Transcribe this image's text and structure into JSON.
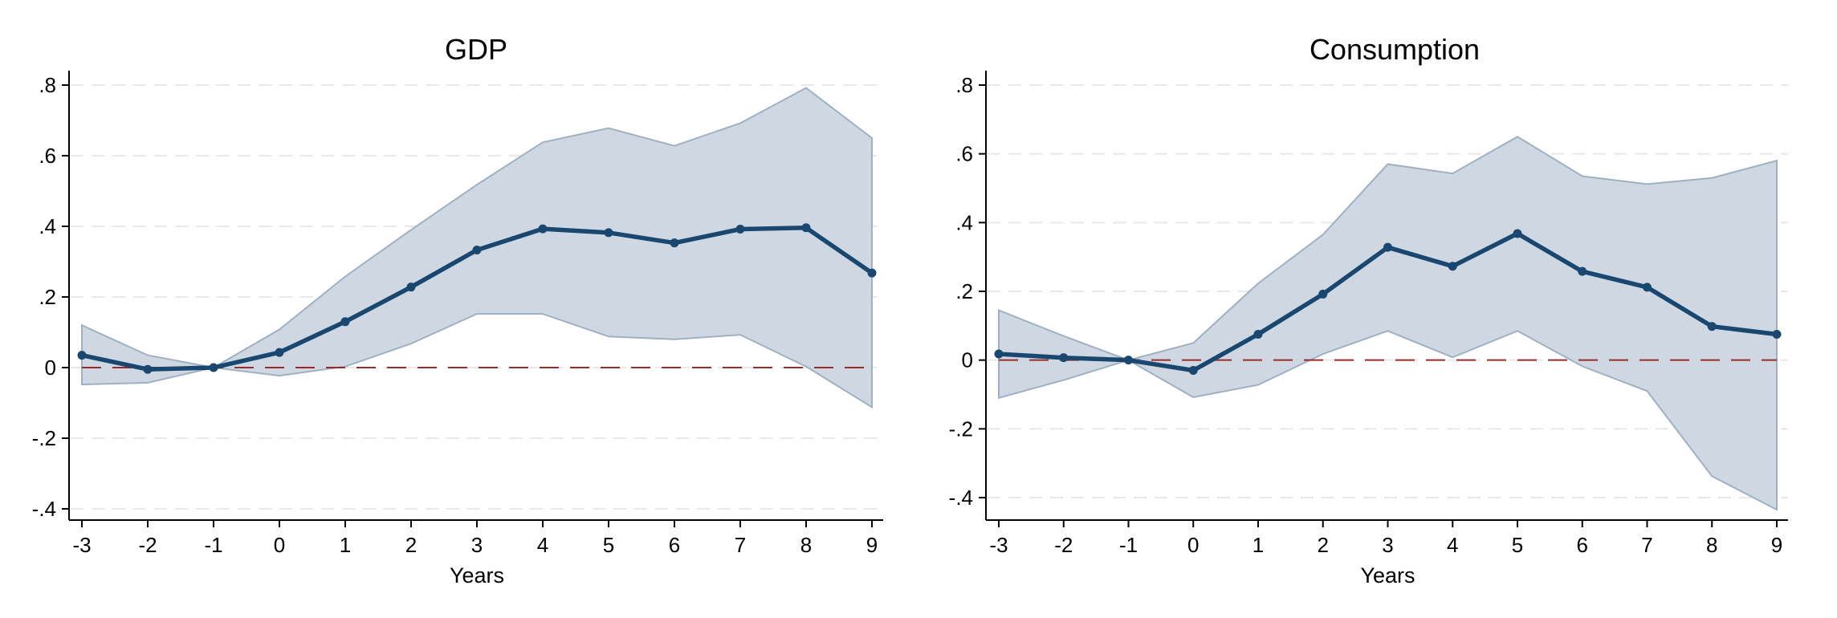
{
  "colors": {
    "line": "#1a476f",
    "band_fill": "#cfd8e2",
    "band_stroke": "#9fb0c2",
    "zero_line": "#9b2b2b",
    "grid": "#e8e8e8",
    "axis": "#000000"
  },
  "chart_data": [
    {
      "type": "line",
      "title": "GDP",
      "xlabel": "Years",
      "ylabel": "",
      "x": [
        -3,
        -2,
        -1,
        0,
        1,
        2,
        3,
        4,
        5,
        6,
        7,
        8,
        9
      ],
      "xlim": [
        -3,
        9
      ],
      "ylim": [
        -0.4,
        0.8
      ],
      "xticks": [
        -3,
        -2,
        -1,
        0,
        1,
        2,
        3,
        4,
        5,
        6,
        7,
        8,
        9
      ],
      "yticks": [
        -0.4,
        -0.2,
        0,
        0.2,
        0.4,
        0.6,
        0.8
      ],
      "ytick_labels": [
        "-.4",
        "-.2",
        "0",
        ".2",
        ".4",
        ".6",
        ".8"
      ],
      "grid": "horizontal dashed",
      "reference_line": 0,
      "series": [
        {
          "values": [
            0.035,
            -0.005,
            0.0,
            0.043,
            0.13,
            0.228,
            0.333,
            0.393,
            0.382,
            0.353,
            0.392,
            0.396,
            0.268
          ],
          "lower": [
            -0.048,
            -0.043,
            0.0,
            -0.023,
            0.003,
            0.068,
            0.152,
            0.152,
            0.088,
            0.08,
            0.093,
            0.003,
            -0.112
          ],
          "upper": [
            0.12,
            0.035,
            0.0,
            0.108,
            0.258,
            0.39,
            0.518,
            0.638,
            0.678,
            0.628,
            0.692,
            0.792,
            0.65
          ]
        }
      ]
    },
    {
      "type": "line",
      "title": "Consumption",
      "xlabel": "Years",
      "ylabel": "",
      "x": [
        -3,
        -2,
        -1,
        0,
        1,
        2,
        3,
        4,
        5,
        6,
        7,
        8,
        9
      ],
      "xlim": [
        -3,
        9
      ],
      "ylim": [
        -0.4,
        0.8
      ],
      "xticks": [
        -3,
        -2,
        -1,
        0,
        1,
        2,
        3,
        4,
        5,
        6,
        7,
        8,
        9
      ],
      "yticks": [
        -0.4,
        -0.2,
        0,
        0.2,
        0.4,
        0.6,
        0.8
      ],
      "ytick_labels": [
        "-.4",
        "-.2",
        "0",
        ".2",
        ".4",
        ".6",
        ".8"
      ],
      "grid": "horizontal dashed",
      "reference_line": 0,
      "series": [
        {
          "values": [
            0.018,
            0.007,
            0.0,
            -0.03,
            0.075,
            0.192,
            0.328,
            0.273,
            0.368,
            0.258,
            0.212,
            0.098,
            0.075
          ],
          "lower": [
            -0.11,
            -0.058,
            0.0,
            -0.108,
            -0.072,
            0.018,
            0.085,
            0.008,
            0.085,
            -0.018,
            -0.09,
            -0.338,
            -0.435
          ],
          "upper": [
            0.145,
            0.07,
            0.0,
            0.05,
            0.223,
            0.365,
            0.57,
            0.543,
            0.65,
            0.535,
            0.512,
            0.53,
            0.58
          ]
        }
      ]
    }
  ]
}
